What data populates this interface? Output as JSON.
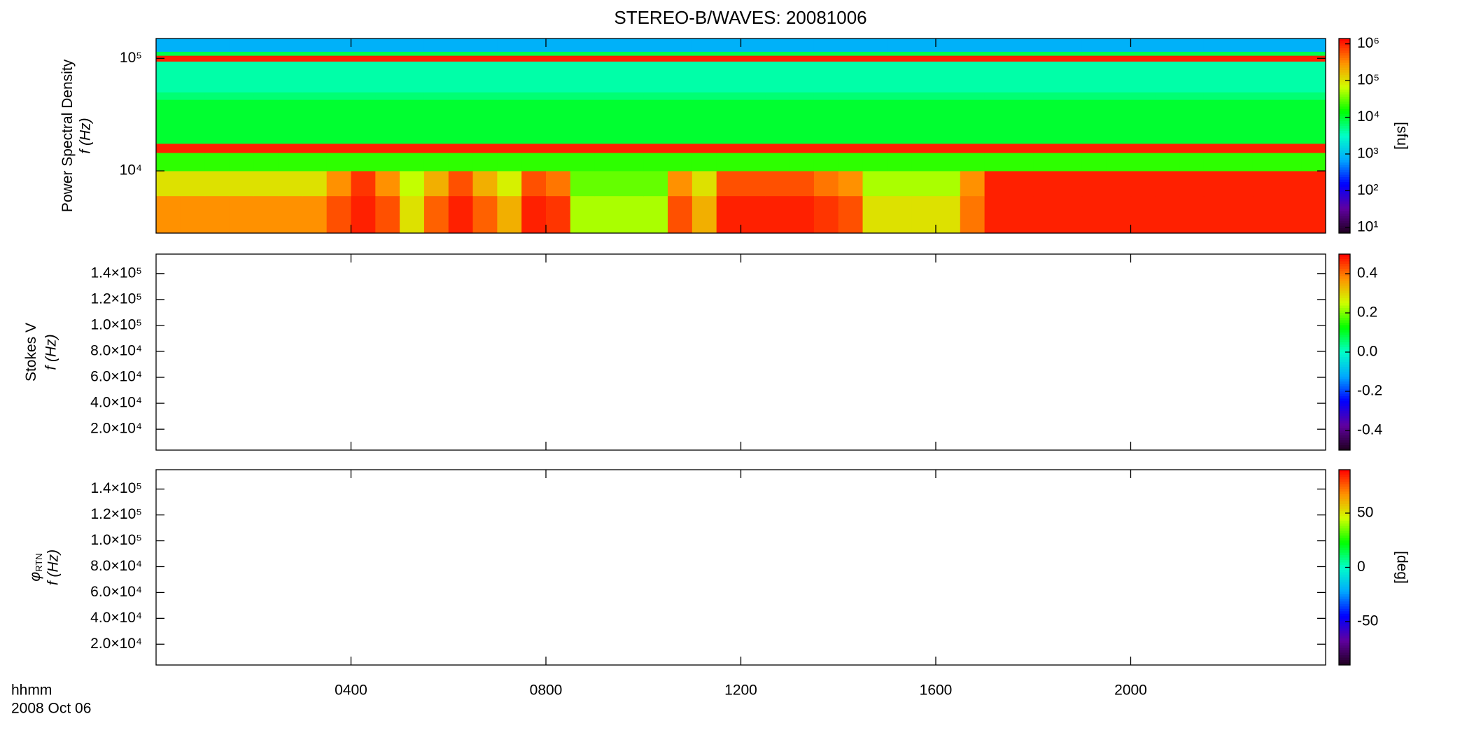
{
  "chart_data": {
    "type": "multi-panel",
    "title": "STEREO-B/WAVES: 20081006",
    "xlabel": "hhmm",
    "date_label": "2008 Oct 06",
    "xlim": [
      0,
      24
    ],
    "xticks": [
      {
        "value": 4,
        "label": "0400"
      },
      {
        "value": 8,
        "label": "0800"
      },
      {
        "value": 12,
        "label": "1200"
      },
      {
        "value": 16,
        "label": "1600"
      },
      {
        "value": 20,
        "label": "2000"
      }
    ],
    "colorscale": [
      "#200020",
      "#6000a0",
      "#0000ff",
      "#00a8ff",
      "#00ffc8",
      "#00ff00",
      "#d0ff00",
      "#ff9000",
      "#ff0000"
    ],
    "panels": [
      {
        "type": "heatmap",
        "ylabel": "Power Spectral Density",
        "ylabel2": "f (Hz)",
        "yscale": "log",
        "ylim": [
          2800,
          150000
        ],
        "yticks": [
          {
            "value": 10000,
            "label": "10⁴"
          },
          {
            "value": 100000,
            "label": "10⁵"
          }
        ],
        "zscale": "log",
        "zlim": [
          7,
          1400000
        ],
        "zticks": [
          {
            "value": 10,
            "label": "10¹"
          },
          {
            "value": 100,
            "label": "10²"
          },
          {
            "value": 1000,
            "label": "10³"
          },
          {
            "value": 10000,
            "label": "10⁴"
          },
          {
            "value": 100000,
            "label": "10⁵"
          },
          {
            "value": 1000000,
            "label": "10⁶"
          }
        ],
        "zlabel": "[sfu]",
        "x_bins": [
          0,
          0.5,
          1,
          1.5,
          2,
          2.5,
          3,
          3.5,
          4,
          4.5,
          5,
          5.5,
          6,
          6.5,
          7,
          7.5,
          8,
          8.5,
          9,
          9.5,
          10,
          10.5,
          11,
          11.5,
          12,
          12.5,
          13,
          13.5,
          14,
          14.5,
          15,
          15.5,
          16,
          16.5,
          17,
          17.5,
          18,
          18.5,
          19,
          19.5,
          20,
          20.5,
          21,
          21.5,
          22,
          22.5,
          23,
          23.5,
          24
        ],
        "y_bins": [
          2800,
          6000,
          10000,
          14500,
          17500,
          43000,
          50000,
          94000,
          106000,
          115000,
          150000
        ],
        "z": [
          [
            300000.0,
            300000.0,
            300000.0,
            300000.0,
            300000.0,
            300000.0,
            300000.0,
            600000.0,
            1000000.0,
            600000.0,
            100000.0,
            500000.0,
            1000000.0,
            500000.0,
            200000.0,
            1000000.0,
            800000.0,
            50000.0,
            50000.0,
            50000.0,
            50000.0,
            600000.0,
            200000.0,
            1000000.0,
            1000000.0,
            1000000.0,
            1000000.0,
            800000.0,
            600000.0,
            100000.0,
            100000.0,
            100000.0,
            100000.0,
            400000.0,
            1000000.0,
            1000000.0,
            1000000.0,
            1000000.0,
            1000000.0,
            1000000.0,
            1000000.0,
            1000000.0,
            1000000.0,
            1000000.0,
            1000000.0,
            1000000.0,
            1000000.0,
            1000000.0
          ],
          [
            100000.0,
            100000.0,
            100000.0,
            100000.0,
            100000.0,
            100000.0,
            100000.0,
            300000.0,
            800000.0,
            300000.0,
            60000.0,
            200000.0,
            600000.0,
            200000.0,
            80000.0,
            600000.0,
            400000.0,
            30000.0,
            30000.0,
            30000.0,
            30000.0,
            300000.0,
            100000.0,
            600000.0,
            600000.0,
            600000.0,
            600000.0,
            400000.0,
            300000.0,
            50000.0,
            50000.0,
            50000.0,
            50000.0,
            300000.0,
            1000000.0,
            1000000.0,
            1000000.0,
            1000000.0,
            1000000.0,
            1000000.0,
            1000000.0,
            1000000.0,
            1000000.0,
            1000000.0,
            1000000.0,
            1000000.0,
            1000000.0,
            1000000.0
          ],
          [
            20000.0,
            20000.0,
            20000.0,
            20000.0,
            20000.0,
            20000.0,
            20000.0,
            20000.0,
            20000.0,
            20000.0,
            20000.0,
            20000.0,
            20000.0,
            20000.0,
            20000.0,
            20000.0,
            20000.0,
            20000.0,
            20000.0,
            20000.0,
            20000.0,
            20000.0,
            20000.0,
            20000.0,
            20000.0,
            20000.0,
            20000.0,
            20000.0,
            20000.0,
            20000.0,
            20000.0,
            20000.0,
            20000.0,
            20000.0,
            20000.0,
            20000.0,
            20000.0,
            20000.0,
            20000.0,
            20000.0,
            20000.0,
            20000.0,
            20000.0,
            20000.0,
            20000.0,
            20000.0,
            20000.0,
            20000.0
          ],
          [
            1000000.0,
            1000000.0,
            1000000.0,
            1000000.0,
            1000000.0,
            1000000.0,
            1000000.0,
            1000000.0,
            1000000.0,
            1000000.0,
            1000000.0,
            1000000.0,
            1000000.0,
            1000000.0,
            1000000.0,
            1000000.0,
            1000000.0,
            1000000.0,
            1000000.0,
            1000000.0,
            1000000.0,
            1000000.0,
            1000000.0,
            1000000.0,
            1000000.0,
            1000000.0,
            1000000.0,
            1000000.0,
            1000000.0,
            1000000.0,
            1000000.0,
            1000000.0,
            1000000.0,
            1000000.0,
            1000000.0,
            1000000.0,
            1000000.0,
            1000000.0,
            1000000.0,
            1000000.0,
            1000000.0,
            1000000.0,
            1000000.0,
            1000000.0,
            1000000.0,
            1000000.0,
            1000000.0,
            1000000.0
          ],
          [
            10000.0,
            10000.0,
            10000.0,
            10000.0,
            10000.0,
            10000.0,
            10000.0,
            10000.0,
            10000.0,
            10000.0,
            10000.0,
            10000.0,
            10000.0,
            10000.0,
            10000.0,
            10000.0,
            10000.0,
            10000.0,
            10000.0,
            10000.0,
            10000.0,
            10000.0,
            10000.0,
            10000.0,
            10000.0,
            10000.0,
            10000.0,
            10000.0,
            10000.0,
            10000.0,
            10000.0,
            10000.0,
            10000.0,
            10000.0,
            10000.0,
            10000.0,
            10000.0,
            10000.0,
            10000.0,
            10000.0,
            10000.0,
            10000.0,
            10000.0,
            10000.0,
            10000.0,
            10000.0,
            10000.0,
            10000.0
          ],
          [
            6000.0,
            6000.0,
            6000.0,
            6000.0,
            6000.0,
            6000.0,
            6000.0,
            6000.0,
            6000.0,
            6000.0,
            6000.0,
            6000.0,
            6000.0,
            6000.0,
            6000.0,
            6000.0,
            6000.0,
            6000.0,
            6000.0,
            6000.0,
            6000.0,
            6000.0,
            6000.0,
            6000.0,
            6000.0,
            6000.0,
            6000.0,
            6000.0,
            6000.0,
            6000.0,
            6000.0,
            6000.0,
            6000.0,
            6000.0,
            6000.0,
            6000.0,
            6000.0,
            6000.0,
            6000.0,
            6000.0,
            6000.0,
            6000.0,
            6000.0,
            6000.0,
            6000.0,
            6000.0,
            6000.0,
            6000.0
          ],
          [
            4000.0,
            4000.0,
            4000.0,
            4000.0,
            4000.0,
            4000.0,
            4000.0,
            4000.0,
            4000.0,
            4000.0,
            4000.0,
            4000.0,
            4000.0,
            4000.0,
            4000.0,
            4000.0,
            4000.0,
            4000.0,
            4000.0,
            4000.0,
            4000.0,
            4000.0,
            4000.0,
            4000.0,
            4000.0,
            4000.0,
            4000.0,
            4000.0,
            4000.0,
            4000.0,
            4000.0,
            4000.0,
            4000.0,
            4000.0,
            4000.0,
            4000.0,
            4000.0,
            4000.0,
            4000.0,
            4000.0,
            4000.0,
            4000.0,
            4000.0,
            4000.0,
            4000.0,
            4000.0,
            4000.0,
            4000.0
          ],
          [
            1000000.0,
            1000000.0,
            1000000.0,
            1000000.0,
            1000000.0,
            1000000.0,
            1000000.0,
            1000000.0,
            1000000.0,
            1000000.0,
            1000000.0,
            1000000.0,
            1000000.0,
            1000000.0,
            1000000.0,
            1000000.0,
            1000000.0,
            1000000.0,
            1000000.0,
            1000000.0,
            1000000.0,
            1000000.0,
            1000000.0,
            1000000.0,
            1000000.0,
            1000000.0,
            1000000.0,
            1000000.0,
            1000000.0,
            1000000.0,
            1000000.0,
            1000000.0,
            1000000.0,
            1000000.0,
            1000000.0,
            1000000.0,
            1000000.0,
            1000000.0,
            1000000.0,
            1000000.0,
            1000000.0,
            1000000.0,
            1000000.0,
            1000000.0,
            1000000.0,
            1000000.0,
            1000000.0,
            1000000.0
          ],
          [
            8000.0,
            8000.0,
            8000.0,
            8000.0,
            8000.0,
            8000.0,
            8000.0,
            8000.0,
            8000.0,
            8000.0,
            8000.0,
            8000.0,
            8000.0,
            8000.0,
            8000.0,
            8000.0,
            8000.0,
            8000.0,
            8000.0,
            8000.0,
            8000.0,
            8000.0,
            8000.0,
            8000.0,
            8000.0,
            8000.0,
            8000.0,
            8000.0,
            8000.0,
            8000.0,
            8000.0,
            8000.0,
            8000.0,
            8000.0,
            8000.0,
            8000.0,
            8000.0,
            8000.0,
            8000.0,
            8000.0,
            8000.0,
            8000.0,
            8000.0,
            8000.0,
            8000.0,
            8000.0,
            8000.0,
            8000.0
          ],
          [
            800.0,
            800.0,
            800.0,
            800.0,
            800.0,
            800.0,
            800.0,
            800.0,
            800.0,
            800.0,
            800.0,
            800.0,
            800.0,
            800.0,
            800.0,
            800.0,
            800.0,
            800.0,
            800.0,
            800.0,
            800.0,
            800.0,
            800.0,
            800.0,
            800.0,
            800.0,
            800.0,
            800.0,
            800.0,
            800.0,
            800.0,
            800.0,
            800.0,
            800.0,
            800.0,
            800.0,
            800.0,
            800.0,
            800.0,
            800.0,
            800.0,
            800.0,
            800.0,
            800.0,
            800.0,
            800.0,
            800.0,
            800.0
          ]
        ]
      },
      {
        "type": "heatmap",
        "ylabel": "Stokes V",
        "ylabel2": "f (Hz)",
        "yscale": "linear",
        "ylim": [
          3900,
          155000
        ],
        "yticks": [
          {
            "value": 20000,
            "label": "2.0×10⁴"
          },
          {
            "value": 40000,
            "label": "4.0×10⁴"
          },
          {
            "value": 60000,
            "label": "6.0×10⁴"
          },
          {
            "value": 80000,
            "label": "8.0×10⁴"
          },
          {
            "value": 100000,
            "label": "1.0×10⁵"
          },
          {
            "value": 120000,
            "label": "1.2×10⁵"
          },
          {
            "value": 140000,
            "label": "1.4×10⁵"
          }
        ],
        "zscale": "linear",
        "zlim": [
          -0.5,
          0.5
        ],
        "zticks": [
          -0.4,
          -0.2,
          {
            "value": 0,
            "label": "0.0"
          },
          0.2,
          0.4
        ]
      },
      {
        "type": "heatmap",
        "ylabel": "φ",
        "ylabel_sub": "RTN",
        "ylabel2": "f (Hz)",
        "yscale": "linear",
        "ylim": [
          3900,
          155000
        ],
        "yticks": [
          {
            "value": 20000,
            "label": "2.0×10⁴"
          },
          {
            "value": 40000,
            "label": "4.0×10⁴"
          },
          {
            "value": 60000,
            "label": "6.0×10⁴"
          },
          {
            "value": 80000,
            "label": "8.0×10⁴"
          },
          {
            "value": 100000,
            "label": "1.0×10⁵"
          },
          {
            "value": 120000,
            "label": "1.2×10⁵"
          },
          {
            "value": 140000,
            "label": "1.4×10⁵"
          }
        ],
        "zscale": "linear",
        "zlim": [
          -90,
          90
        ],
        "zticks": [
          -50,
          0,
          50
        ],
        "zlabel": "[deg]"
      }
    ]
  }
}
